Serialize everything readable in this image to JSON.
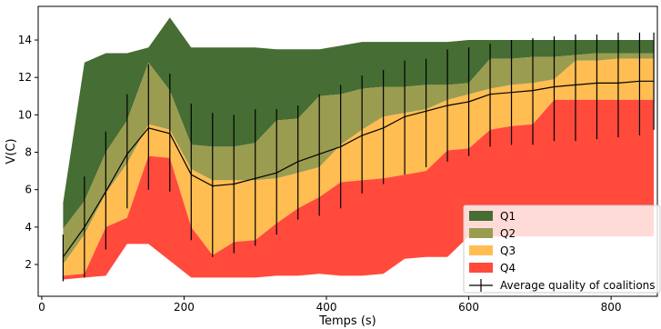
{
  "chart_data": {
    "type": "area",
    "xlabel": "Temps (s)",
    "ylabel": "V(C)",
    "xlim": [
      -5,
      865
    ],
    "ylim": [
      0.3,
      15.8
    ],
    "xticks": [
      0,
      200,
      400,
      600,
      800
    ],
    "yticks": [
      2,
      4,
      6,
      8,
      10,
      12,
      14
    ],
    "grid": false,
    "legend_position": "bottom-right",
    "x": [
      30,
      60,
      90,
      120,
      150,
      180,
      210,
      240,
      270,
      300,
      330,
      360,
      390,
      420,
      450,
      480,
      510,
      540,
      570,
      600,
      630,
      660,
      690,
      720,
      750,
      780,
      810,
      840,
      860
    ],
    "bands": [
      {
        "name": "Q1",
        "color": "#466d33",
        "lower": [
          3.9,
          5.4,
          8.0,
          9.7,
          12.8,
          11.3,
          8.4,
          8.3,
          8.3,
          8.5,
          9.7,
          9.8,
          11.0,
          11.1,
          11.4,
          11.5,
          11.5,
          11.6,
          11.6,
          11.7,
          13.0,
          13.0,
          13.1,
          13.1,
          13.2,
          13.3,
          13.3,
          13.3,
          13.3
        ],
        "upper": [
          5.3,
          12.8,
          13.3,
          13.3,
          13.6,
          15.2,
          13.6,
          13.6,
          13.6,
          13.6,
          13.5,
          13.5,
          13.5,
          13.7,
          13.9,
          13.9,
          13.9,
          13.9,
          13.9,
          14.0,
          14.0,
          14.0,
          14.0,
          14.0,
          14.0,
          14.0,
          14.0,
          14.0,
          14.0
        ]
      },
      {
        "name": "Q2",
        "color": "#9a9c50",
        "lower": [
          2.0,
          3.6,
          5.8,
          7.4,
          9.5,
          9.2,
          7.1,
          6.5,
          6.5,
          6.5,
          6.6,
          6.9,
          7.2,
          8.4,
          9.2,
          9.9,
          10.1,
          10.3,
          10.8,
          11.1,
          11.4,
          11.6,
          11.7,
          11.9,
          12.9,
          12.9,
          13.0,
          13.0,
          13.0
        ],
        "upper": [
          3.9,
          5.4,
          8.0,
          9.7,
          12.8,
          11.3,
          8.4,
          8.3,
          8.3,
          8.5,
          9.7,
          9.8,
          11.0,
          11.1,
          11.4,
          11.5,
          11.5,
          11.6,
          11.6,
          11.7,
          13.0,
          13.0,
          13.1,
          13.1,
          13.2,
          13.3,
          13.3,
          13.3,
          13.3
        ]
      },
      {
        "name": "Q3",
        "color": "#ffbd52",
        "lower": [
          1.4,
          1.5,
          4.0,
          4.5,
          7.8,
          7.7,
          4.0,
          2.5,
          3.2,
          3.3,
          4.2,
          5.0,
          5.6,
          6.4,
          6.5,
          6.6,
          6.8,
          7.0,
          8.1,
          8.2,
          9.2,
          9.4,
          9.5,
          10.8,
          10.8,
          10.8,
          10.8,
          10.8,
          10.8
        ],
        "upper": [
          2.0,
          3.6,
          5.8,
          7.4,
          9.5,
          9.2,
          7.1,
          6.5,
          6.5,
          6.5,
          6.6,
          6.9,
          7.2,
          8.4,
          9.2,
          9.9,
          10.1,
          10.3,
          10.8,
          11.1,
          11.4,
          11.6,
          11.7,
          11.9,
          12.9,
          12.9,
          13.0,
          13.0,
          13.0
        ]
      },
      {
        "name": "Q4",
        "color": "#ff4a3c",
        "lower": [
          1.2,
          1.3,
          1.4,
          3.1,
          3.1,
          2.2,
          1.3,
          1.3,
          1.3,
          1.3,
          1.4,
          1.4,
          1.5,
          1.4,
          1.4,
          1.5,
          2.3,
          2.4,
          2.4,
          3.5,
          3.5,
          3.5,
          3.5,
          3.5,
          3.5,
          3.5,
          3.5,
          3.5,
          3.5
        ],
        "upper": [
          1.4,
          1.5,
          4.0,
          4.5,
          7.8,
          7.7,
          4.0,
          2.5,
          3.2,
          3.3,
          4.2,
          5.0,
          5.6,
          6.4,
          6.5,
          6.6,
          6.8,
          7.0,
          8.1,
          8.2,
          9.2,
          9.4,
          9.5,
          10.8,
          10.8,
          10.8,
          10.8,
          10.8,
          10.8
        ]
      }
    ],
    "mean_series": {
      "name": "Average quality of coalitions",
      "color": "#000000",
      "values": [
        2.4,
        4.0,
        5.9,
        7.9,
        9.3,
        9.0,
        6.8,
        6.2,
        6.3,
        6.6,
        6.9,
        7.5,
        7.9,
        8.3,
        8.9,
        9.3,
        9.9,
        10.2,
        10.5,
        10.7,
        11.1,
        11.2,
        11.3,
        11.5,
        11.6,
        11.7,
        11.7,
        11.8,
        11.8
      ],
      "err_low": [
        1.1,
        1.3,
        2.8,
        5.0,
        6.0,
        5.9,
        3.3,
        2.4,
        2.6,
        3.0,
        3.6,
        4.4,
        4.6,
        5.0,
        5.8,
        6.3,
        6.8,
        7.2,
        7.5,
        7.8,
        8.3,
        8.4,
        8.4,
        8.6,
        8.6,
        8.7,
        8.8,
        8.9,
        9.2
      ],
      "err_high": [
        3.6,
        6.7,
        9.1,
        11.1,
        12.7,
        12.2,
        10.6,
        10.1,
        10.0,
        10.3,
        10.3,
        10.5,
        11.1,
        11.6,
        12.1,
        12.4,
        12.9,
        13.0,
        13.5,
        13.6,
        13.8,
        14.0,
        14.1,
        14.2,
        14.3,
        14.3,
        14.4,
        14.4,
        14.4
      ]
    },
    "legend": [
      "Q1",
      "Q2",
      "Q3",
      "Q4",
      "Average quality of coalitions"
    ]
  }
}
